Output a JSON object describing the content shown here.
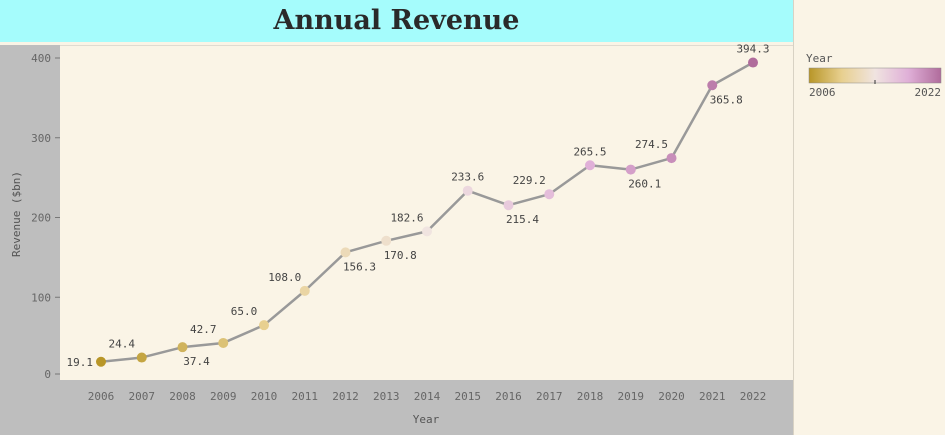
{
  "chart_data": {
    "type": "line",
    "title": "Annual Revenue",
    "xlabel": "Year",
    "ylabel": "Revenue ($bn)",
    "ylim": [
      0,
      420
    ],
    "y_ticks": [
      0,
      100,
      200,
      300,
      400
    ],
    "x": [
      "2006",
      "2007",
      "2008",
      "2009",
      "2010",
      "2011",
      "2012",
      "2013",
      "2014",
      "2015",
      "2016",
      "2017",
      "2018",
      "2019",
      "2020",
      "2021",
      "2022"
    ],
    "series": [
      {
        "values": [
          19.1,
          24.4,
          37.4,
          42.7,
          65.0,
          108.0,
          156.3,
          170.8,
          182.6,
          233.6,
          215.4,
          229.2,
          265.5,
          260.1,
          274.5,
          365.8,
          394.3
        ],
        "labels": [
          "19.1",
          "24.4",
          "37.4",
          "42.7",
          "65.0",
          "108.0",
          "156.3",
          "170.8",
          "182.6",
          "233.6",
          "215.4",
          "229.2",
          "265.5",
          "260.1",
          "274.5",
          "365.8",
          "394.3"
        ]
      }
    ],
    "line_color": "#999999",
    "grid": false,
    "legend": {
      "title": "Year",
      "position": "right",
      "min_label": "2006",
      "max_label": "2022",
      "gradient": [
        "#b89628",
        "#e8d090",
        "#f0e4e0",
        "#e0b0d8",
        "#b06c9c"
      ]
    }
  }
}
